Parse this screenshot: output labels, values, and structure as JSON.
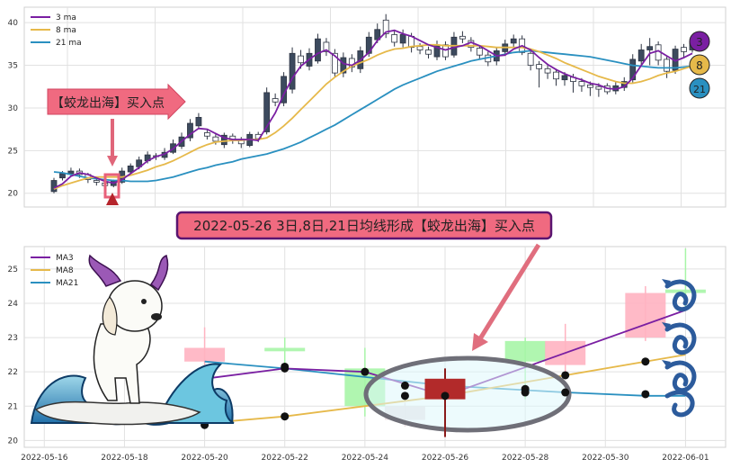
{
  "colors": {
    "ma_short": "#7a1fa2",
    "ma_mid": "#e6b94a",
    "ma_long": "#2a90c0",
    "candle_up": "#ffffff",
    "candle_down": "#3c4a5e",
    "candle_edge": "#2d3442",
    "banner_fill": "#f06a80",
    "banner_border": "#5a1470",
    "grid": "#e1e1e1"
  },
  "annotations": {
    "top_arrow_text": "【蛟龙出海】买入点",
    "banner_text": "2022-05-26 3日,8日,21日均线形成【蛟龙出海】买入点"
  },
  "badges": [
    "3",
    "8",
    "21"
  ],
  "chart_data": [
    {
      "type": "candlestick",
      "legend": [
        "3 ma",
        "8 ma",
        "21 ma"
      ],
      "legend_position": "top-left",
      "grid": true,
      "ylim": [
        18.6,
        41.6
      ],
      "y_ticks": [
        20,
        25,
        30,
        35,
        40
      ],
      "candles": [
        [
          21.5,
          20.2,
          21.8,
          20.0
        ],
        [
          22.3,
          21.8,
          22.6,
          21.5
        ],
        [
          22.6,
          22.3,
          23.0,
          22.0
        ],
        [
          22.2,
          22.6,
          22.9,
          21.8
        ],
        [
          21.6,
          22.2,
          22.4,
          21.2
        ],
        [
          21.3,
          21.5,
          21.8,
          20.9
        ],
        [
          20.9,
          21.2,
          21.4,
          20.6
        ],
        [
          21.4,
          20.9,
          21.6,
          20.7
        ],
        [
          22.6,
          21.3,
          23.0,
          21.1
        ],
        [
          23.2,
          22.5,
          23.5,
          22.1
        ],
        [
          23.9,
          23.1,
          24.3,
          22.8
        ],
        [
          24.5,
          23.8,
          24.9,
          23.5
        ],
        [
          24.3,
          24.4,
          24.7,
          23.9
        ],
        [
          24.8,
          24.2,
          25.3,
          23.9
        ],
        [
          25.8,
          24.8,
          26.3,
          24.6
        ],
        [
          26.6,
          25.5,
          27.1,
          25.2
        ],
        [
          28.2,
          26.5,
          28.7,
          26.1
        ],
        [
          28.9,
          27.9,
          29.4,
          27.6
        ],
        [
          26.7,
          27.1,
          27.4,
          26.3
        ],
        [
          26.1,
          26.6,
          26.9,
          25.7
        ],
        [
          26.8,
          25.7,
          27.1,
          25.3
        ],
        [
          26.2,
          26.7,
          27.0,
          25.8
        ],
        [
          25.8,
          26.3,
          26.6,
          25.3
        ],
        [
          26.9,
          25.6,
          27.2,
          25.4
        ],
        [
          26.4,
          26.9,
          27.2,
          26.0
        ],
        [
          31.8,
          27.2,
          32.4,
          26.9
        ],
        [
          30.7,
          31.1,
          31.7,
          30.2
        ],
        [
          33.7,
          30.6,
          34.2,
          30.2
        ],
        [
          36.4,
          32.2,
          37.1,
          31.7
        ],
        [
          35.3,
          36.1,
          36.8,
          34.6
        ],
        [
          36.4,
          34.9,
          37.0,
          34.4
        ],
        [
          38.1,
          35.5,
          38.7,
          35.2
        ],
        [
          36.6,
          37.7,
          38.2,
          36.1
        ],
        [
          34.1,
          36.4,
          36.9,
          33.7
        ],
        [
          35.9,
          34.1,
          36.5,
          33.6
        ],
        [
          34.8,
          35.8,
          36.3,
          34.2
        ],
        [
          36.7,
          34.6,
          37.2,
          34.1
        ],
        [
          38.3,
          36.4,
          38.9,
          36.0
        ],
        [
          39.2,
          38.0,
          39.9,
          37.6
        ],
        [
          38.7,
          40.3,
          41.0,
          38.2
        ],
        [
          37.7,
          38.6,
          39.1,
          37.2
        ],
        [
          38.6,
          37.6,
          39.2,
          37.1
        ],
        [
          37.1,
          38.4,
          38.8,
          36.5
        ],
        [
          36.8,
          37.2,
          37.6,
          36.3
        ],
        [
          36.3,
          36.8,
          37.2,
          35.8
        ],
        [
          37.4,
          36.0,
          37.9,
          35.6
        ],
        [
          36.0,
          37.4,
          37.8,
          35.6
        ],
        [
          38.3,
          36.2,
          38.9,
          35.9
        ],
        [
          38.1,
          38.4,
          39.0,
          37.6
        ],
        [
          37.1,
          37.9,
          38.3,
          36.6
        ],
        [
          36.2,
          37.0,
          37.3,
          35.7
        ],
        [
          35.4,
          36.2,
          36.6,
          34.9
        ],
        [
          36.7,
          35.5,
          37.1,
          35.0
        ],
        [
          37.5,
          36.6,
          38.0,
          36.1
        ],
        [
          38.1,
          37.6,
          38.6,
          37.1
        ],
        [
          36.5,
          38.1,
          38.5,
          36.2
        ],
        [
          35.0,
          36.4,
          36.8,
          34.4
        ],
        [
          34.6,
          35.1,
          35.5,
          32.4
        ],
        [
          34.1,
          34.6,
          35.0,
          33.4
        ],
        [
          33.4,
          34.2,
          34.6,
          32.6
        ],
        [
          33.8,
          33.3,
          34.2,
          32.6
        ],
        [
          33.1,
          33.6,
          34.0,
          31.8
        ],
        [
          32.6,
          33.1,
          33.5,
          31.9
        ],
        [
          32.4,
          32.7,
          33.1,
          31.4
        ],
        [
          32.2,
          32.5,
          32.9,
          31.3
        ],
        [
          31.9,
          32.6,
          32.9,
          31.6
        ],
        [
          32.6,
          32.0,
          33.0,
          31.6
        ],
        [
          33.1,
          32.4,
          33.6,
          32.0
        ],
        [
          35.7,
          33.3,
          36.3,
          33.0
        ],
        [
          36.8,
          35.5,
          37.5,
          35.0
        ],
        [
          37.2,
          36.8,
          38.2,
          35.0
        ],
        [
          35.6,
          37.4,
          37.8,
          35.0
        ],
        [
          34.3,
          35.7,
          36.0,
          33.5
        ],
        [
          36.9,
          34.4,
          37.3,
          34.0
        ],
        [
          36.6,
          37.1,
          37.5,
          35.8
        ],
        [
          37.8,
          36.8,
          38.1,
          36.5
        ]
      ],
      "ma3": [
        20.6,
        21.1,
        22.0,
        22.4,
        22.2,
        21.8,
        21.4,
        21.2,
        21.6,
        22.3,
        23.0,
        23.8,
        24.3,
        24.6,
        25.2,
        26.1,
        26.9,
        27.6,
        27.5,
        27.0,
        26.5,
        26.3,
        26.3,
        26.3,
        26.2,
        27.8,
        29.4,
        31.6,
        33.5,
        34.9,
        35.7,
        36.4,
        36.8,
        36.1,
        35.2,
        35.0,
        35.6,
        36.5,
        37.9,
        38.9,
        39.1,
        38.7,
        38.4,
        37.9,
        37.4,
        37.1,
        36.8,
        37.1,
        37.3,
        37.7,
        37.3,
        36.7,
        36.1,
        36.2,
        36.9,
        37.3,
        36.8,
        35.9,
        35.1,
        34.5,
        34.0,
        33.6,
        33.3,
        32.9,
        32.7,
        32.3,
        32.2,
        32.5,
        33.5,
        35.0,
        36.4,
        36.7,
        36.1,
        35.5,
        35.9,
        36.4
      ],
      "ma8": [
        20.5,
        20.9,
        21.2,
        21.5,
        21.8,
        21.9,
        21.9,
        21.9,
        21.9,
        22.1,
        22.4,
        22.7,
        23.1,
        23.4,
        23.8,
        24.3,
        24.8,
        25.3,
        25.7,
        26.0,
        26.1,
        26.2,
        26.2,
        26.3,
        26.3,
        26.5,
        27.1,
        27.9,
        28.8,
        29.8,
        30.8,
        31.8,
        32.8,
        33.6,
        34.3,
        34.9,
        35.3,
        35.7,
        36.2,
        36.6,
        36.9,
        37.0,
        37.2,
        37.3,
        37.4,
        37.4,
        37.3,
        37.3,
        37.3,
        37.3,
        37.3,
        37.2,
        37.1,
        37.1,
        37.1,
        37.1,
        36.9,
        36.6,
        36.2,
        35.8,
        35.3,
        34.9,
        34.5,
        34.1,
        33.7,
        33.4,
        33.1,
        32.9,
        32.9,
        33.1,
        33.4,
        33.8,
        34.1,
        34.3,
        34.6,
        34.9
      ],
      "ma21": [
        22.5,
        22.4,
        22.2,
        22.0,
        21.8,
        21.7,
        21.6,
        21.5,
        21.5,
        21.4,
        21.4,
        21.4,
        21.5,
        21.7,
        21.9,
        22.2,
        22.5,
        22.8,
        23.0,
        23.3,
        23.5,
        23.7,
        24.0,
        24.2,
        24.4,
        24.6,
        24.9,
        25.2,
        25.6,
        26.0,
        26.5,
        27.0,
        27.5,
        28.0,
        28.6,
        29.2,
        29.8,
        30.4,
        31.0,
        31.6,
        32.2,
        32.7,
        33.1,
        33.5,
        33.9,
        34.3,
        34.6,
        34.9,
        35.2,
        35.5,
        35.7,
        35.9,
        36.1,
        36.3,
        36.5,
        36.6,
        36.7,
        36.6,
        36.5,
        36.4,
        36.3,
        36.2,
        36.1,
        36.0,
        35.8,
        35.6,
        35.4,
        35.2,
        35.0,
        34.9,
        34.8,
        34.7,
        34.7,
        34.7,
        34.8,
        34.9
      ]
    },
    {
      "type": "candlestick",
      "legend": [
        "MA3",
        "MA8",
        "MA21"
      ],
      "legend_position": "top-left",
      "grid": true,
      "ylim": [
        19.8,
        25.6
      ],
      "y_ticks": [
        20,
        21,
        22,
        23,
        24,
        25
      ],
      "x_tick_labels": [
        "2022-05-16",
        "2022-05-18",
        "2022-05-20",
        "2022-05-22",
        "2022-05-24",
        "2022-05-26",
        "2022-05-28",
        "2022-05-30",
        "2022-06-01"
      ],
      "x_range": [
        15.5,
        33
      ],
      "candles": [
        {
          "x": 20,
          "o": 22.7,
          "c": 22.3,
          "h": 23.3,
          "l": 21.9,
          "color": "#ffb3c1"
        },
        {
          "x": 22,
          "o": 22.7,
          "c": 22.6,
          "h": 23.0,
          "l": 22.2,
          "color": "#a7f5a7"
        },
        {
          "x": 24,
          "o": 22.1,
          "c": 21.0,
          "h": 22.7,
          "l": 20.7,
          "color": "#a7f5a7"
        },
        {
          "x": 25,
          "o": 21.0,
          "c": 20.6,
          "h": 21.1,
          "l": 20.4,
          "color": "#ece0e3"
        },
        {
          "x": 26,
          "o": 21.8,
          "c": 21.2,
          "h": 22.1,
          "l": 20.1,
          "color": "#b22a2a"
        },
        {
          "x": 28,
          "o": 22.9,
          "c": 22.3,
          "h": 23.0,
          "l": 21.2,
          "color": "#a7f5a7"
        },
        {
          "x": 29,
          "o": 22.2,
          "c": 22.9,
          "h": 23.4,
          "l": 21.9,
          "color": "#ffb3c1"
        },
        {
          "x": 31,
          "o": 23.0,
          "c": 24.3,
          "h": 24.5,
          "l": 22.9,
          "color": "#ffb3c1"
        },
        {
          "x": 32,
          "o": 24.4,
          "c": 24.3,
          "h": 25.6,
          "l": 23.9,
          "color": "#a7f5a7"
        }
      ],
      "ma3": {
        "x": [
          20,
          22,
          24,
          26,
          32
        ],
        "y": [
          21.8,
          22.1,
          22.0,
          21.3,
          23.8
        ]
      },
      "ma8": {
        "x": [
          20,
          22,
          26,
          29,
          32
        ],
        "y": [
          20.5,
          20.7,
          21.3,
          21.9,
          22.5
        ]
      },
      "ma21": {
        "x": [
          20,
          22,
          26,
          29,
          31,
          32
        ],
        "y": [
          22.3,
          22.1,
          21.6,
          21.4,
          21.3,
          21.3
        ]
      },
      "markers": [
        [
          20,
          21.8
        ],
        [
          22,
          22.15
        ],
        [
          24,
          22.0
        ],
        [
          26,
          21.3
        ],
        [
          29,
          21.9
        ],
        [
          20,
          20.45
        ],
        [
          22,
          20.7
        ],
        [
          29,
          21.4
        ],
        [
          31,
          21.35
        ],
        [
          31,
          22.3
        ],
        [
          22,
          22.1
        ],
        [
          25,
          21.6
        ],
        [
          25,
          21.3
        ],
        [
          28,
          21.5
        ],
        [
          28,
          21.4
        ]
      ]
    }
  ]
}
